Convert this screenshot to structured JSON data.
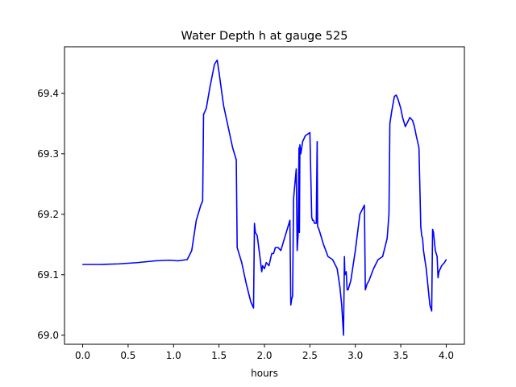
{
  "chart_data": {
    "type": "line",
    "title": "Water Depth h at gauge 525",
    "xlabel": "hours",
    "ylabel": "",
    "xlim": [
      -0.2,
      4.2
    ],
    "ylim": [
      68.985,
      69.477
    ],
    "x_ticks": [
      0.0,
      0.5,
      1.0,
      1.5,
      2.0,
      2.5,
      3.0,
      3.5,
      4.0
    ],
    "x_tick_labels": [
      "0.0",
      "0.5",
      "1.0",
      "1.5",
      "2.0",
      "2.5",
      "3.0",
      "3.5",
      "4.0"
    ],
    "y_ticks": [
      69.0,
      69.1,
      69.2,
      69.3,
      69.4
    ],
    "y_tick_labels": [
      "69.0",
      "69.1",
      "69.2",
      "69.3",
      "69.4"
    ],
    "grid": false,
    "series": [
      {
        "color": "#0000ff",
        "x": [
          0.0,
          0.2,
          0.4,
          0.6,
          0.8,
          0.95,
          1.05,
          1.15,
          1.2,
          1.25,
          1.3,
          1.32,
          1.33,
          1.36,
          1.4,
          1.45,
          1.48,
          1.5,
          1.55,
          1.6,
          1.65,
          1.69,
          1.7,
          1.72,
          1.75,
          1.8,
          1.85,
          1.88,
          1.89,
          1.9,
          1.92,
          1.95,
          1.97,
          1.98,
          2.0,
          2.02,
          2.05,
          2.08,
          2.1,
          2.12,
          2.15,
          2.18,
          2.2,
          2.25,
          2.28,
          2.29,
          2.3,
          2.31,
          2.32,
          2.35,
          2.36,
          2.37,
          2.38,
          2.385,
          2.39,
          2.4,
          2.42,
          2.45,
          2.5,
          2.52,
          2.53,
          2.54,
          2.55,
          2.57,
          2.58,
          2.585,
          2.6,
          2.65,
          2.7,
          2.75,
          2.8,
          2.83,
          2.85,
          2.87,
          2.88,
          2.885,
          2.9,
          2.91,
          2.92,
          2.94,
          2.95,
          2.97,
          3.0,
          3.05,
          3.1,
          3.11,
          3.12,
          3.13,
          3.15,
          3.2,
          3.25,
          3.3,
          3.35,
          3.37,
          3.38,
          3.4,
          3.43,
          3.45,
          3.47,
          3.48,
          3.5,
          3.52,
          3.55,
          3.6,
          3.63,
          3.65,
          3.67,
          3.7,
          3.72,
          3.73,
          3.74,
          3.75,
          3.78,
          3.8,
          3.82,
          3.84,
          3.85,
          3.86,
          3.88,
          3.9,
          3.91,
          3.92,
          3.95,
          3.98,
          4.0
        ],
        "values": [
          69.117,
          69.117,
          69.118,
          69.12,
          69.123,
          69.124,
          69.123,
          69.125,
          69.14,
          69.19,
          69.215,
          69.222,
          69.365,
          69.375,
          69.41,
          69.448,
          69.455,
          69.435,
          69.38,
          69.345,
          69.31,
          69.29,
          69.145,
          69.135,
          69.12,
          69.085,
          69.055,
          69.045,
          69.185,
          69.17,
          69.165,
          69.13,
          69.105,
          69.115,
          69.11,
          69.12,
          69.115,
          69.135,
          69.135,
          69.145,
          69.145,
          69.14,
          69.15,
          69.175,
          69.19,
          69.05,
          69.06,
          69.065,
          69.225,
          69.275,
          69.14,
          69.165,
          69.31,
          69.17,
          69.315,
          69.3,
          69.32,
          69.33,
          69.335,
          69.195,
          69.19,
          69.19,
          69.185,
          69.185,
          69.32,
          69.18,
          69.175,
          69.15,
          69.13,
          69.125,
          69.11,
          69.08,
          69.05,
          69.0,
          69.13,
          69.1,
          69.105,
          69.075,
          69.075,
          69.085,
          69.09,
          69.11,
          69.14,
          69.2,
          69.215,
          69.075,
          69.08,
          69.085,
          69.09,
          69.11,
          69.125,
          69.13,
          69.16,
          69.2,
          69.35,
          69.37,
          69.395,
          69.397,
          69.39,
          69.385,
          69.375,
          69.36,
          69.345,
          69.36,
          69.355,
          69.345,
          69.33,
          69.31,
          69.18,
          69.165,
          69.16,
          69.14,
          69.11,
          69.08,
          69.05,
          69.04,
          69.175,
          69.17,
          69.14,
          69.13,
          69.095,
          69.105,
          69.115,
          69.12,
          69.125
        ]
      }
    ]
  }
}
